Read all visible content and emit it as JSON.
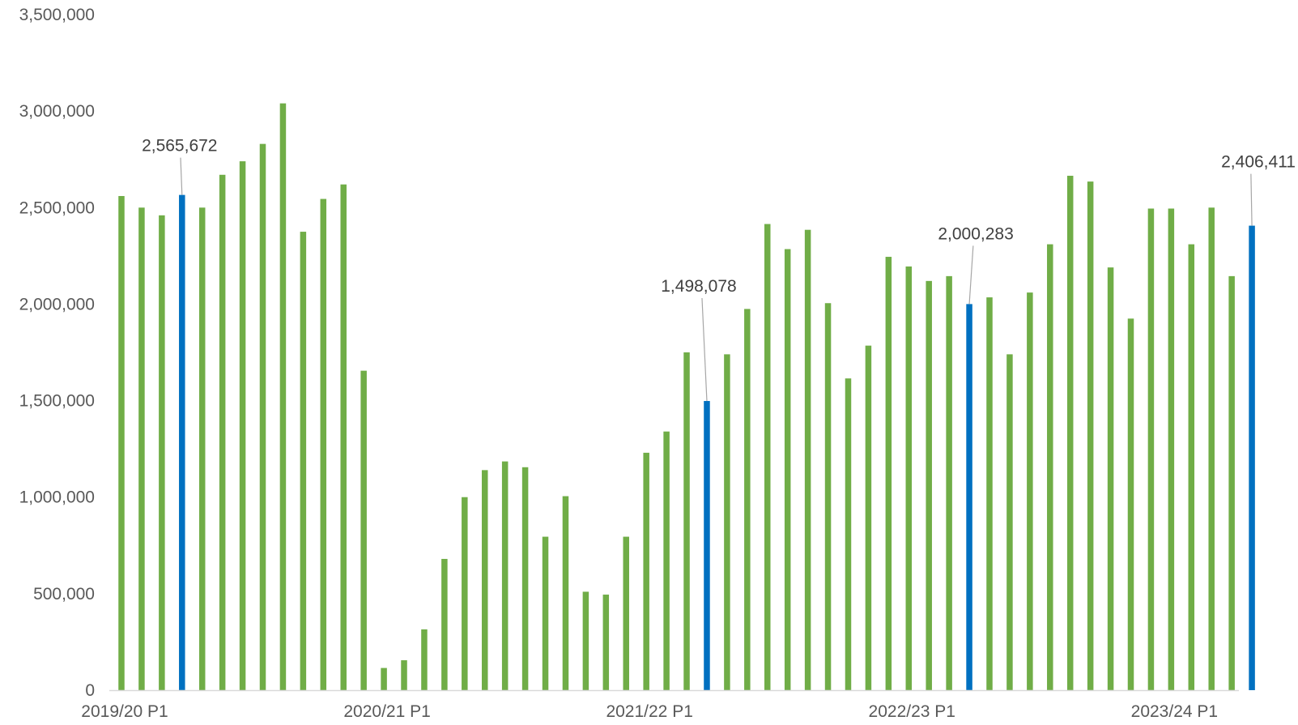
{
  "chart_data": {
    "type": "bar",
    "title": "",
    "xlabel": "",
    "ylabel": "",
    "ylim": [
      0,
      3500000
    ],
    "yticks": [
      0,
      500000,
      1000000,
      1500000,
      2000000,
      2500000,
      3000000,
      3500000
    ],
    "ytick_labels": [
      "0",
      "500,000",
      "1,000,000",
      "1,500,000",
      "2,000,000",
      "2,500,000",
      "3,000,000",
      "3,500,000"
    ],
    "x_tick_labels": [
      {
        "index": 0,
        "label": "2019/20 P1"
      },
      {
        "index": 13,
        "label": "2020/21 P1"
      },
      {
        "index": 26,
        "label": "2021/22 P1"
      },
      {
        "index": 39,
        "label": "2022/23 P1"
      },
      {
        "index": 52,
        "label": "2023/24 P1"
      }
    ],
    "grid": false,
    "colors": {
      "default": "#70AD47",
      "highlight": "#0070C0",
      "axis": "#D9D9D9",
      "text": "#595959",
      "leader": "#A6A6A6"
    },
    "values": [
      2560000,
      2500000,
      2460000,
      2565672,
      2500000,
      2670000,
      2740000,
      2830000,
      3040000,
      2375000,
      2545000,
      2620000,
      1655000,
      115000,
      155000,
      315000,
      680000,
      1000000,
      1140000,
      1185000,
      1155000,
      795000,
      1005000,
      510000,
      495000,
      795000,
      1230000,
      1340000,
      1750000,
      1498078,
      1740000,
      1975000,
      2415000,
      2285000,
      2385000,
      2005000,
      1615000,
      1785000,
      2245000,
      2195000,
      2120000,
      2145000,
      2000283,
      2035000,
      1740000,
      2060000,
      2310000,
      2665000,
      2635000,
      2190000,
      1925000,
      2495000,
      2495000,
      2310000,
      2500000,
      2145000,
      2406411
    ],
    "highlighted_indices": [
      3,
      29,
      42,
      56
    ],
    "data_labels": [
      {
        "index": 3,
        "text": "2,565,672"
      },
      {
        "index": 29,
        "text": "1,498,078"
      },
      {
        "index": 42,
        "text": "2,000,283"
      },
      {
        "index": 56,
        "text": "2,406,411"
      }
    ]
  }
}
